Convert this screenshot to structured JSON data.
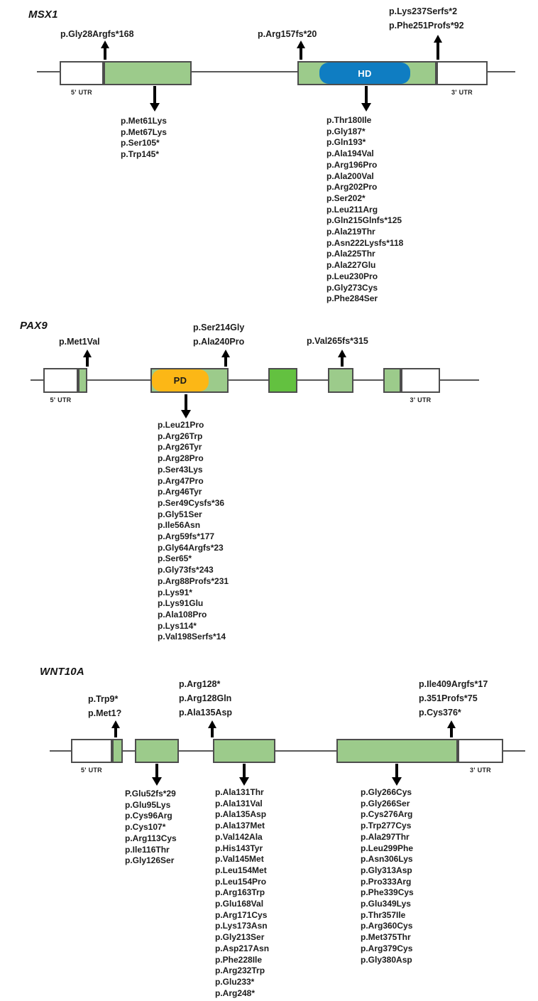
{
  "colors": {
    "exon_green": "#9ccb8b",
    "bright_green": "#63c140",
    "homeodomain_blue": "#0f7dc2",
    "paired_domain_orange": "#fcb716",
    "box_border": "#4d4d4d",
    "intron_line": "#585858",
    "text": "#1c1c1c"
  },
  "genes": [
    {
      "name": "MSX1",
      "utr5_label": "5' UTR",
      "utr3_label": "3' UTR",
      "domain_label": "HD",
      "above_groups": [
        [
          "p.Gly28Argfs*168"
        ],
        [
          "p.Arg157fs*20"
        ],
        [
          "p.Lys237Serfs*2",
          "p.Phe251Profs*92"
        ]
      ],
      "below_groups": [
        [
          "p.Met61Lys",
          "p.Met67Lys",
          "p.Ser105*",
          "p.Trp145*"
        ],
        [
          "p.Thr180Ile",
          "p.Gly187*",
          "p.Gln193*",
          "p.Ala194Val",
          "p.Arg196Pro",
          "p.Ala200Val",
          "p.Arg202Pro",
          "p.Ser202*",
          "p.Leu211Arg",
          "p.Gln215Glnfs*125",
          "p.Ala219Thr",
          "p.Asn222Lysfs*118",
          "p.Ala225Thr",
          "p.Ala227Glu",
          "p.Leu230Pro",
          "p.Gly273Cys",
          "p.Phe284Ser"
        ]
      ]
    },
    {
      "name": "PAX9",
      "utr5_label": "5' UTR",
      "utr3_label": "3' UTR",
      "domain_label": "PD",
      "above_groups": [
        [
          "p.Met1Val"
        ],
        [
          "p.Ser214Gly",
          "p.Ala240Pro"
        ],
        [
          "p.Val265fs*315"
        ]
      ],
      "below_groups": [
        [
          "p.Leu21Pro",
          "p.Arg26Trp",
          "p.Arg26Tyr",
          "p.Arg28Pro",
          "p.Ser43Lys",
          "p.Arg47Pro",
          "p.Arg46Tyr",
          "p.Ser49Cysfs*36",
          "p.Gly51Ser",
          "p.Ile56Asn",
          "p.Arg59fs*177",
          "p.Gly64Argfs*23",
          "p.Ser65*",
          "p.Gly73fs*243",
          "p.Arg88Profs*231",
          "p.Lys91*",
          "p.Lys91Glu",
          "p.Ala108Pro",
          "p.Lys114*",
          "p.Val198Serfs*14"
        ]
      ]
    },
    {
      "name": "WNT10A",
      "utr5_label": "5' UTR",
      "utr3_label": "3' UTR",
      "domain_label": "",
      "above_groups": [
        [
          "p.Trp9*",
          "p.Met1?"
        ],
        [
          "p.Arg128*",
          "p.Arg128Gln",
          "p.Ala135Asp"
        ],
        [
          "p.Ile409Argfs*17",
          "p.351Profs*75",
          "p.Cys376*"
        ]
      ],
      "below_groups": [
        [
          "P.Glu52fs*29",
          "p.Glu95Lys",
          "p.Cys96Arg",
          "p.Cys107*",
          "p.Arg113Cys",
          "p.Ile116Thr",
          "p.Gly126Ser"
        ],
        [
          "p.Ala131Thr",
          "p.Ala131Val",
          "p.Ala135Asp",
          "p.Ala137Met",
          "p.Val142Ala",
          "p.His143Tyr",
          "p.Val145Met",
          "p.Leu154Met",
          "p.Leu154Pro",
          "p.Arg163Trp",
          "p.Glu168Val",
          "p.Arg171Cys",
          "p.Lys173Asn",
          "p.Gly213Ser",
          "p.Asp217Asn",
          "p.Phe228Ile",
          "p.Arg232Trp",
          "p.Glu233*",
          "p.Arg248*"
        ],
        [
          "p.Gly266Cys",
          "p.Gly266Ser",
          "p.Cys276Arg",
          "p.Trp277Cys",
          "p.Ala297Thr",
          "p.Leu299Phe",
          "p.Asn306Lys",
          "p.Gly313Asp",
          "p.Pro333Arg",
          "p.Phe339Cys",
          "p.Glu349Lys",
          "p.Thr357Ile",
          "p.Arg360Cys",
          "p.Met375Thr",
          "p.Arg379Cys",
          "p.Gly380Asp"
        ]
      ]
    }
  ]
}
